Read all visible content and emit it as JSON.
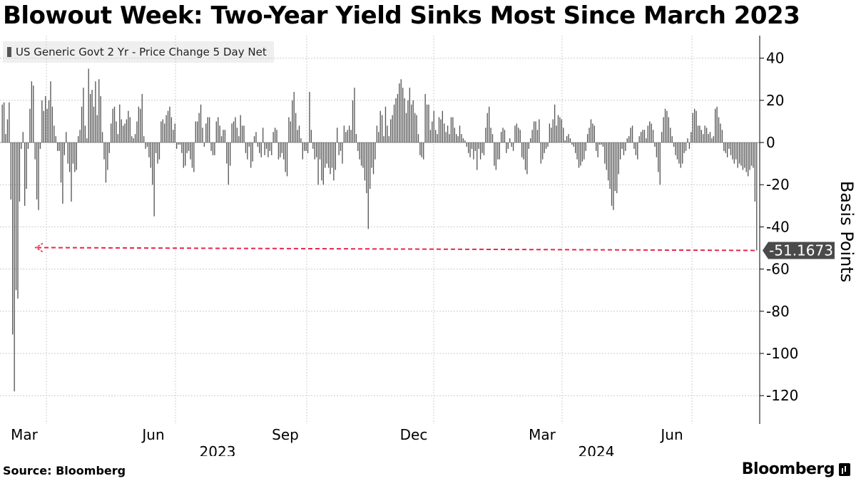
{
  "title": "Blowout Week: Two-Year Yield Sinks Most Since March 2023",
  "source": "Source: Bloomberg",
  "brand": "Bloomberg",
  "chart_data": {
    "type": "bar",
    "legend": [
      "US Generic Govt 2 Yr - Price Change 5 Day Net"
    ],
    "ylabel": "Basis Points",
    "ylim": [
      -135,
      50
    ],
    "yticks": [
      40,
      20,
      0,
      -20,
      -40,
      -60,
      -80,
      -100,
      -120
    ],
    "months": [
      "Mar",
      "Jun",
      "Sep",
      "Dec",
      "Mar",
      "Jun"
    ],
    "years": [
      "2023",
      "2024"
    ],
    "callout": "-51.1673",
    "colors": {
      "bar": "#555555",
      "reference_line": "#e8264c",
      "callout_bg": "#4a4a4a",
      "grid": "#cccccc"
    },
    "series": [
      {
        "name": "US Generic Govt 2 Yr - Price Change 5 Day Net",
        "values": [
          18,
          19,
          4,
          11,
          19,
          -27,
          -91,
          -118,
          -70,
          -74,
          -28,
          -3,
          5,
          -30,
          -22,
          -3,
          16,
          29,
          27,
          -8,
          -27,
          -32,
          -3,
          20,
          15,
          22,
          16,
          20,
          29,
          17,
          8,
          3,
          -4,
          -4,
          -19,
          -29,
          -6,
          5,
          -10,
          -14,
          -28,
          -10,
          -14,
          -13,
          3,
          6,
          17,
          26,
          8,
          2,
          35,
          23,
          25,
          17,
          29,
          13,
          30,
          22,
          5,
          -8,
          -19,
          -13,
          -5,
          9,
          16,
          17,
          10,
          4,
          18,
          11,
          8,
          9,
          11,
          15,
          12,
          3,
          2,
          4,
          10,
          17,
          16,
          23,
          3,
          -3,
          -2,
          -7,
          -12,
          -20,
          -35,
          -5,
          -10,
          -8,
          10,
          11,
          9,
          13,
          15,
          17,
          12,
          6,
          9,
          -3,
          -1,
          -1,
          -5,
          -12,
          -11,
          -5,
          -4,
          -8,
          -12,
          -14,
          10,
          10,
          14,
          18,
          7,
          -2,
          9,
          12,
          12,
          -4,
          -6,
          -6,
          10,
          12,
          8,
          3,
          6,
          6,
          -10,
          -20,
          -11,
          9,
          10,
          12,
          7,
          3,
          13,
          8,
          8,
          -5,
          -8,
          -2,
          -12,
          -9,
          3,
          5,
          -2,
          -5,
          -7,
          7,
          -6,
          -3,
          -7,
          -4,
          -6,
          5,
          7,
          6,
          -8,
          -7,
          -5,
          -8,
          -14,
          -16,
          12,
          10,
          20,
          24,
          14,
          6,
          8,
          2,
          -8,
          -4,
          -4,
          -5,
          24,
          6,
          -3,
          -8,
          -7,
          -20,
          -8,
          -18,
          -20,
          -12,
          -10,
          -12,
          -15,
          -12,
          -18,
          -13,
          7,
          -6,
          -4,
          -10,
          8,
          5,
          6,
          8,
          6,
          20,
          26,
          4,
          -4,
          -8,
          -11,
          -12,
          -18,
          -24,
          -41,
          -22,
          -12,
          -15,
          -8,
          8,
          5,
          15,
          13,
          3,
          17,
          8,
          3,
          11,
          13,
          18,
          21,
          23,
          28,
          30,
          26,
          21,
          14,
          20,
          26,
          18,
          20,
          14,
          13,
          4,
          -6,
          -7,
          -8,
          23,
          18,
          18,
          6,
          10,
          15,
          6,
          4,
          12,
          11,
          15,
          9,
          5,
          8,
          4,
          12,
          12,
          7,
          4,
          3,
          8,
          4,
          2,
          1,
          -2,
          -5,
          -7,
          -3,
          -8,
          -4,
          -13,
          -3,
          -8,
          -5,
          -6,
          7,
          14,
          17,
          7,
          4,
          -11,
          -13,
          -8,
          -8,
          5,
          7,
          6,
          -5,
          -3,
          2,
          -2,
          -4,
          8,
          9,
          7,
          6,
          -7,
          -8,
          -13,
          -15,
          -3,
          2,
          6,
          10,
          10,
          6,
          11,
          -10,
          -8,
          -5,
          -3,
          -2,
          9,
          7,
          11,
          18,
          8,
          13,
          12,
          11,
          7,
          1,
          3,
          4,
          2,
          -1,
          -2,
          -5,
          -8,
          -12,
          -11,
          -9,
          -8,
          -4,
          4,
          7,
          11,
          9,
          8,
          -4,
          -7,
          -1,
          -1,
          -2,
          -10,
          -13,
          -18,
          -22,
          -30,
          -32,
          -23,
          -24,
          -15,
          -8,
          -3,
          -6,
          -4,
          2,
          3,
          7,
          8,
          -3,
          -6,
          -8,
          3,
          5,
          6,
          6,
          2,
          8,
          10,
          9,
          6,
          -2,
          -7,
          -14,
          -20,
          5,
          12,
          16,
          15,
          12,
          7,
          3,
          -2,
          -6,
          -8,
          -10,
          -12,
          -10,
          -5,
          -4,
          2,
          -3,
          5,
          14,
          16,
          15,
          8,
          8,
          6,
          4,
          8,
          7,
          4,
          5,
          2,
          3,
          16,
          17,
          12,
          9,
          6,
          -4,
          -5,
          -7,
          -3,
          -6,
          -8,
          -10,
          -8,
          -12,
          -10,
          -11,
          -13,
          -12,
          -14,
          -16,
          -13,
          -11,
          -12,
          -28,
          -51.1673
        ]
      }
    ]
  }
}
